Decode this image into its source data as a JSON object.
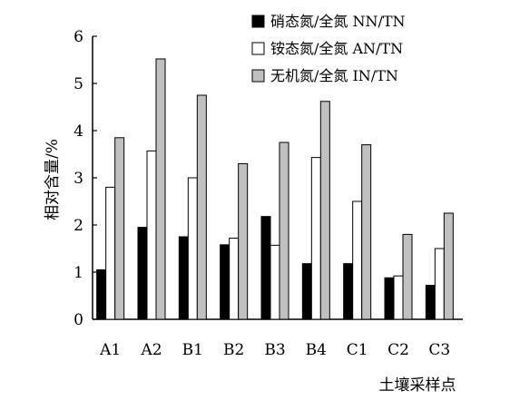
{
  "chart_data": {
    "type": "bar",
    "categories": [
      "A1",
      "A2",
      "B1",
      "B2",
      "B3",
      "B4",
      "C1",
      "C2",
      "C3"
    ],
    "series": [
      {
        "name": "硝态氮/全氮 NN/TN",
        "color": "#000000",
        "values": [
          1.05,
          1.95,
          1.75,
          1.58,
          2.18,
          1.18,
          1.18,
          0.88,
          0.72
        ]
      },
      {
        "name": "铵态氮/全氮 AN/TN",
        "color": "#ffffff",
        "values": [
          2.8,
          3.57,
          3.0,
          1.72,
          1.57,
          3.43,
          2.5,
          0.92,
          1.5
        ]
      },
      {
        "name": "无机氮/全氮 IN/TN",
        "color": "#c0c0c0",
        "values": [
          3.85,
          5.52,
          4.75,
          3.3,
          3.75,
          4.62,
          3.7,
          1.8,
          2.25
        ]
      }
    ],
    "xlabel": "土壤采样点",
    "ylabel": "相对含量/%",
    "ylim": [
      0,
      6
    ],
    "yticks": [
      "0",
      "1",
      "2",
      "3",
      "4",
      "5",
      "6"
    ],
    "grid": false,
    "legend_position": "top-right"
  }
}
